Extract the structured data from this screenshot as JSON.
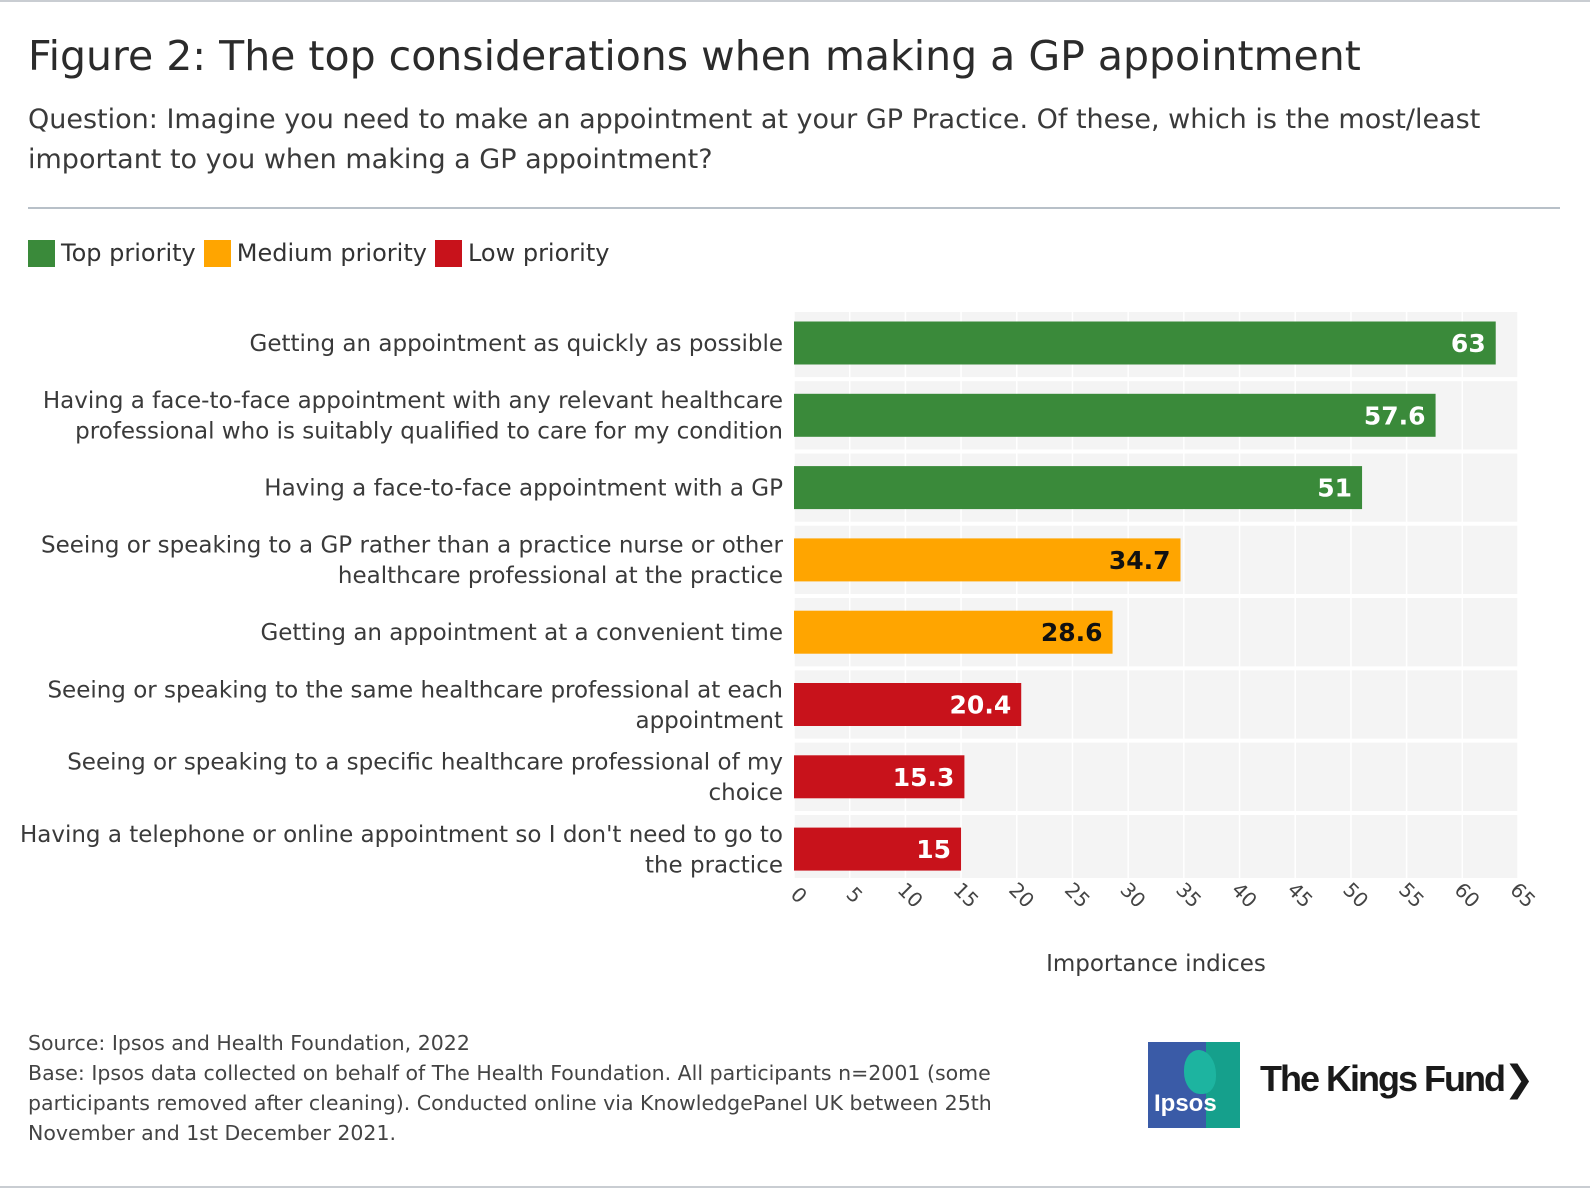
{
  "header": {
    "title": "Figure 2: The top considerations when making a GP appointment",
    "subtitle": "Question: Imagine you need to make an appointment at your GP Practice. Of these, which is the most/least important to you when making a GP appointment?"
  },
  "legend": [
    {
      "label": "Top priority",
      "color": "#3a8a3a"
    },
    {
      "label": "Medium priority",
      "color": "#ffa500"
    },
    {
      "label": "Low priority",
      "color": "#c8121b"
    }
  ],
  "chart_data": {
    "type": "bar",
    "orientation": "horizontal",
    "xlabel": "Importance indices",
    "xlim": [
      0,
      65
    ],
    "xticks": [
      0,
      5,
      10,
      15,
      20,
      25,
      30,
      35,
      40,
      45,
      50,
      55,
      60,
      65
    ],
    "grid": true,
    "categories": [
      [
        "Getting an appointment as quickly as possible"
      ],
      [
        "Having a face-to-face appointment with any relevant healthcare",
        "professional who is suitably qualified to care for my condition"
      ],
      [
        "Having a face-to-face appointment with a GP"
      ],
      [
        "Seeing or speaking to a GP rather than a practice nurse or other",
        "healthcare professional at the practice"
      ],
      [
        "Getting an appointment at a convenient time"
      ],
      [
        "Seeing or speaking to the same healthcare professional at each",
        "appointment"
      ],
      [
        "Seeing or speaking to a specific healthcare professional of my",
        "choice"
      ],
      [
        "Having a telephone or online appointment so I don't need to go to",
        "the practice"
      ]
    ],
    "values": [
      63,
      57.6,
      51,
      34.7,
      28.6,
      20.4,
      15.3,
      15
    ],
    "value_labels": [
      "63",
      "57.6",
      "51",
      "34.7",
      "28.6",
      "20.4",
      "15.3",
      "15"
    ],
    "priority": [
      "Top priority",
      "Top priority",
      "Top priority",
      "Medium priority",
      "Medium priority",
      "Low priority",
      "Low priority",
      "Low priority"
    ],
    "colors": [
      "#3a8a3a",
      "#3a8a3a",
      "#3a8a3a",
      "#ffa500",
      "#ffa500",
      "#c8121b",
      "#c8121b",
      "#c8121b"
    ],
    "label_colors": [
      "#ffffff",
      "#ffffff",
      "#ffffff",
      "#111111",
      "#111111",
      "#ffffff",
      "#ffffff",
      "#ffffff"
    ]
  },
  "footer": {
    "source": "Source: Ipsos and Health Foundation, 2022",
    "base": "Base: Ipsos data collected on behalf of The Health Foundation. All participants n=2001 (some participants removed after cleaning). Conducted online via KnowledgePanel UK between 25th November and 1st December 2021."
  },
  "logos": {
    "ipsos": "Ipsos",
    "kings_fund": "The Kings Fund",
    "kings_fund_chevron": "❯"
  }
}
